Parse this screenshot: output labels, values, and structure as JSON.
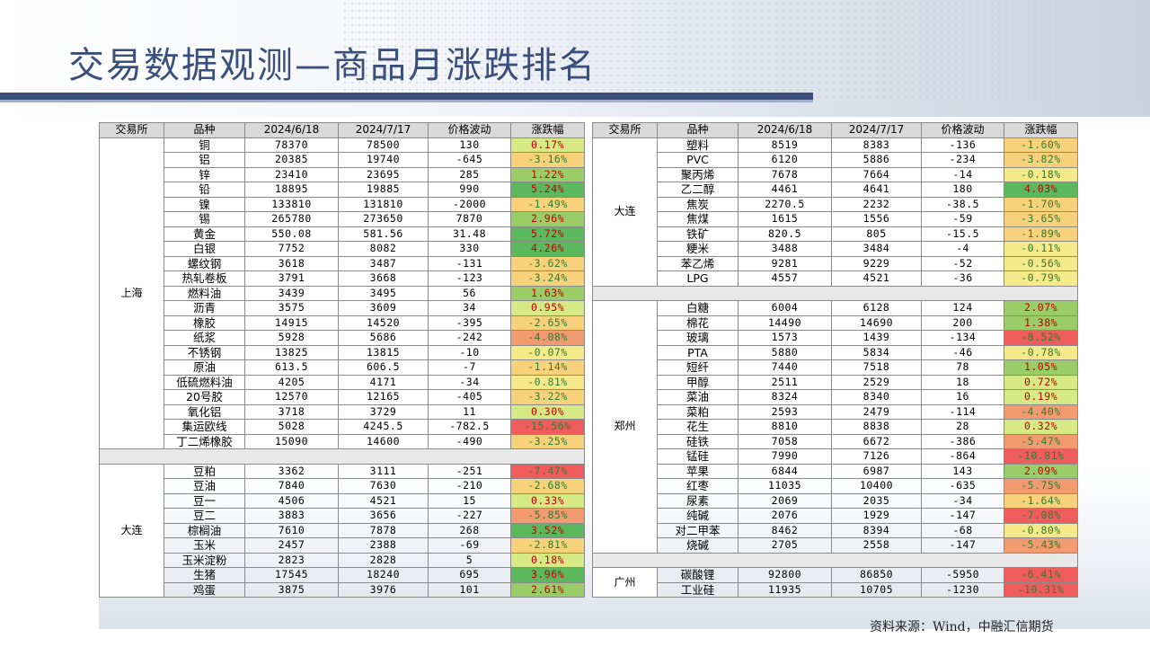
{
  "title": "交易数据观测—商品月涨跌排名",
  "source": "资料来源：Wind，中融汇信期货",
  "headers": [
    "交易所",
    "品种",
    "2024/6/18",
    "2024/7/17",
    "价格波动",
    "涨跌幅"
  ],
  "colors": {
    "up_strong": "#5cb85c",
    "up_mid": "#9acd68",
    "up_light": "#d7e984",
    "flat": "#f5e98a",
    "down_light": "#f7d27a",
    "down_mid": "#f29a70",
    "down_strong": "#ef5c5c"
  },
  "left_groups": [
    {
      "exchange": "上海",
      "rows": [
        [
          "铜",
          "78370",
          "78500",
          "130",
          "0.17%"
        ],
        [
          "铝",
          "20385",
          "19740",
          "-645",
          "-3.16%"
        ],
        [
          "锌",
          "23410",
          "23695",
          "285",
          "1.22%"
        ],
        [
          "铅",
          "18895",
          "19885",
          "990",
          "5.24%"
        ],
        [
          "镍",
          "133810",
          "131810",
          "-2000",
          "-1.49%"
        ],
        [
          "锡",
          "265780",
          "273650",
          "7870",
          "2.96%"
        ],
        [
          "黄金",
          "550.08",
          "581.56",
          "31.48",
          "5.72%"
        ],
        [
          "白银",
          "7752",
          "8082",
          "330",
          "4.26%"
        ],
        [
          "螺纹钢",
          "3618",
          "3487",
          "-131",
          "-3.62%"
        ],
        [
          "热轧卷板",
          "3791",
          "3668",
          "-123",
          "-3.24%"
        ],
        [
          "燃料油",
          "3439",
          "3495",
          "56",
          "1.63%"
        ],
        [
          "沥青",
          "3575",
          "3609",
          "34",
          "0.95%"
        ],
        [
          "橡胶",
          "14915",
          "14520",
          "-395",
          "-2.65%"
        ],
        [
          "纸浆",
          "5928",
          "5686",
          "-242",
          "-4.08%"
        ],
        [
          "不锈钢",
          "13825",
          "13815",
          "-10",
          "-0.07%"
        ],
        [
          "原油",
          "613.5",
          "606.5",
          "-7",
          "-1.14%"
        ],
        [
          "低硫燃料油",
          "4205",
          "4171",
          "-34",
          "-0.81%"
        ],
        [
          "20号胶",
          "12570",
          "12165",
          "-405",
          "-3.22%"
        ],
        [
          "氧化铝",
          "3718",
          "3729",
          "11",
          "0.30%"
        ],
        [
          "集运欧线",
          "5028",
          "4245.5",
          "-782.5",
          "-15.56%"
        ],
        [
          "丁二烯橡胶",
          "15090",
          "14600",
          "-490",
          "-3.25%"
        ]
      ]
    },
    {
      "exchange": "大连",
      "rows": [
        [
          "豆粕",
          "3362",
          "3111",
          "-251",
          "-7.47%"
        ],
        [
          "豆油",
          "7840",
          "7630",
          "-210",
          "-2.68%"
        ],
        [
          "豆一",
          "4506",
          "4521",
          "15",
          "0.33%"
        ],
        [
          "豆二",
          "3883",
          "3656",
          "-227",
          "-5.85%"
        ],
        [
          "棕榈油",
          "7610",
          "7878",
          "268",
          "3.52%"
        ],
        [
          "玉米",
          "2457",
          "2388",
          "-69",
          "-2.81%"
        ],
        [
          "玉米淀粉",
          "2823",
          "2828",
          "5",
          "0.18%"
        ],
        [
          "生猪",
          "17545",
          "18240",
          "695",
          "3.96%"
        ],
        [
          "鸡蛋",
          "3875",
          "3976",
          "101",
          "2.61%"
        ]
      ]
    }
  ],
  "right_groups": [
    {
      "exchange": "大连",
      "rows": [
        [
          "塑料",
          "8519",
          "8383",
          "-136",
          "-1.60%"
        ],
        [
          "PVC",
          "6120",
          "5886",
          "-234",
          "-3.82%"
        ],
        [
          "聚丙烯",
          "7678",
          "7664",
          "-14",
          "-0.18%"
        ],
        [
          "乙二醇",
          "4461",
          "4641",
          "180",
          "4.03%"
        ],
        [
          "焦炭",
          "2270.5",
          "2232",
          "-38.5",
          "-1.70%"
        ],
        [
          "焦煤",
          "1615",
          "1556",
          "-59",
          "-3.65%"
        ],
        [
          "铁矿",
          "820.5",
          "805",
          "-15.5",
          "-1.89%"
        ],
        [
          "粳米",
          "3488",
          "3484",
          "-4",
          "-0.11%"
        ],
        [
          "苯乙烯",
          "9281",
          "9229",
          "-52",
          "-0.56%"
        ],
        [
          "LPG",
          "4557",
          "4521",
          "-36",
          "-0.79%"
        ]
      ]
    },
    {
      "exchange": "郑州",
      "rows": [
        [
          "白糖",
          "6004",
          "6128",
          "124",
          "2.07%"
        ],
        [
          "棉花",
          "14490",
          "14690",
          "200",
          "1.38%"
        ],
        [
          "玻璃",
          "1573",
          "1439",
          "-134",
          "-8.52%"
        ],
        [
          "PTA",
          "5880",
          "5834",
          "-46",
          "-0.78%"
        ],
        [
          "短纤",
          "7440",
          "7518",
          "78",
          "1.05%"
        ],
        [
          "甲醇",
          "2511",
          "2529",
          "18",
          "0.72%"
        ],
        [
          "菜油",
          "8324",
          "8340",
          "16",
          "0.19%"
        ],
        [
          "菜粕",
          "2593",
          "2479",
          "-114",
          "-4.40%"
        ],
        [
          "花生",
          "8810",
          "8838",
          "28",
          "0.32%"
        ],
        [
          "硅铁",
          "7058",
          "6672",
          "-386",
          "-5.47%"
        ],
        [
          "锰硅",
          "7990",
          "7126",
          "-864",
          "-10.81%"
        ],
        [
          "苹果",
          "6844",
          "6987",
          "143",
          "2.09%"
        ],
        [
          "红枣",
          "11035",
          "10400",
          "-635",
          "-5.75%"
        ],
        [
          "尿素",
          "2069",
          "2035",
          "-34",
          "-1.64%"
        ],
        [
          "纯碱",
          "2076",
          "1929",
          "-147",
          "-7.08%"
        ],
        [
          "对二甲苯",
          "8462",
          "8394",
          "-68",
          "-0.80%"
        ],
        [
          "烧碱",
          "2705",
          "2558",
          "-147",
          "-5.43%"
        ]
      ]
    },
    {
      "exchange": "广州",
      "rows": [
        [
          "碳酸锂",
          "92800",
          "86850",
          "-5950",
          "-6.41%"
        ],
        [
          "工业硅",
          "11935",
          "10705",
          "-1230",
          "-10.31%"
        ]
      ]
    }
  ]
}
